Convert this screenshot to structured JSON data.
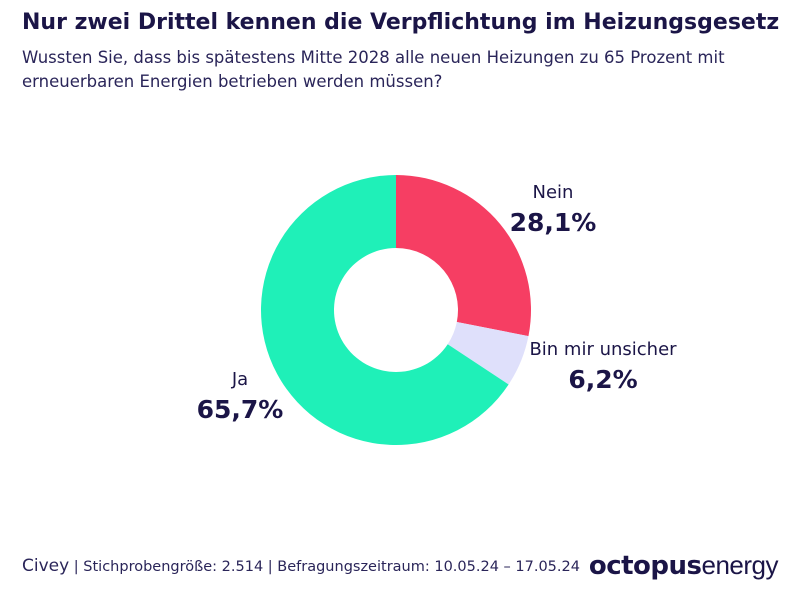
{
  "chart_data": {
    "type": "donut",
    "title": "Nur zwei Drittel kennen die Verpflichtung im Heizungsgesetz",
    "subtitle": "Wussten Sie, dass bis spätestens Mitte 2028 alle neuen Heizungen zu 65 Prozent mit erneuerbaren Energien betrieben werden müssen?",
    "categories": [
      "Nein",
      "Bin mir unsicher",
      "Ja"
    ],
    "values": [
      28.1,
      6.2,
      65.7
    ],
    "value_labels": [
      "28,1%",
      "6,2%",
      "65,7%"
    ],
    "colors": [
      "#f63e63",
      "#dfe0fb",
      "#1ff0b8"
    ],
    "source": "Civey",
    "note": "| Stichprobengröße: 2.514  |  Befragungszeitraum: 10.05.24 – 17.05.24",
    "logo": [
      "octopus",
      "energy"
    ]
  }
}
